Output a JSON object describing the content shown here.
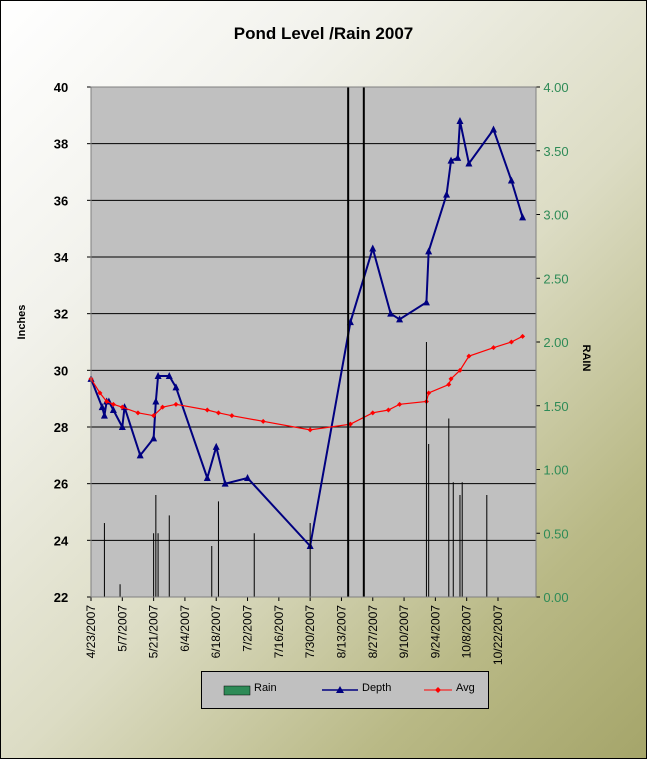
{
  "chart_data": {
    "type": "bar+line",
    "title": "Pond Level /Rain 2007",
    "xlabel": "",
    "ylabel": "Inches",
    "y2label": "RAIN",
    "ylim": [
      22,
      40
    ],
    "y2lim": [
      0,
      4
    ],
    "yticks": [
      "22",
      "24",
      "26",
      "28",
      "30",
      "32",
      "34",
      "36",
      "38",
      "40"
    ],
    "y2ticks": [
      "0.00",
      "0.50",
      "1.00",
      "1.50",
      "2.00",
      "2.50",
      "3.00",
      "3.50",
      "4.00"
    ],
    "xtick_labels": [
      "4/23/2007",
      "5/7/2007",
      "5/21/2007",
      "6/4/2007",
      "6/18/2007",
      "7/2/2007",
      "7/16/2007",
      "7/30/2007",
      "8/13/2007",
      "8/27/2007",
      "9/10/2007",
      "9/24/2007",
      "10/8/2007",
      "10/22/2007"
    ],
    "x_start": "2007-04-23",
    "x_end": "2007-11-08",
    "legend": [
      {
        "name": "Rain",
        "color": "#2e8b57",
        "kind": "bar"
      },
      {
        "name": "Depth",
        "color": "#000080",
        "kind": "line-triangle"
      },
      {
        "name": "Avg",
        "color": "#ff0000",
        "kind": "line-diamond"
      }
    ],
    "grid": true,
    "series": [
      {
        "name": "Depth",
        "axis": "left",
        "color": "#000080",
        "x": [
          "2007-04-23",
          "2007-04-28",
          "2007-04-29",
          "2007-04-30",
          "2007-05-01",
          "2007-05-03",
          "2007-05-07",
          "2007-05-08",
          "2007-05-15",
          "2007-05-21",
          "2007-05-22",
          "2007-05-23",
          "2007-05-28",
          "2007-05-31",
          "2007-06-14",
          "2007-06-18",
          "2007-06-22",
          "2007-07-02",
          "2007-07-30",
          "2007-08-17",
          "2007-08-27",
          "2007-09-04",
          "2007-09-08",
          "2007-09-20",
          "2007-09-21",
          "2007-09-29",
          "2007-10-01",
          "2007-10-04",
          "2007-10-05",
          "2007-10-09",
          "2007-10-20",
          "2007-10-28",
          "2007-11-02"
        ],
        "values": [
          29.7,
          28.7,
          28.4,
          28.9,
          28.9,
          28.6,
          28.0,
          28.7,
          27.0,
          27.6,
          28.9,
          29.8,
          29.8,
          29.4,
          26.2,
          27.3,
          26.0,
          26.2,
          23.8,
          31.7,
          34.3,
          32.0,
          31.8,
          32.4,
          34.2,
          36.2,
          37.4,
          37.5,
          38.8,
          37.3,
          38.5,
          36.7,
          35.4
        ]
      },
      {
        "name": "Avg",
        "axis": "left",
        "color": "#ff0000",
        "x": [
          "2007-04-23",
          "2007-04-27",
          "2007-04-30",
          "2007-05-03",
          "2007-05-07",
          "2007-05-14",
          "2007-05-21",
          "2007-05-25",
          "2007-05-31",
          "2007-06-14",
          "2007-06-19",
          "2007-06-25",
          "2007-07-09",
          "2007-07-30",
          "2007-08-17",
          "2007-08-27",
          "2007-09-03",
          "2007-09-08",
          "2007-09-20",
          "2007-09-21",
          "2007-09-30",
          "2007-10-01",
          "2007-10-05",
          "2007-10-09",
          "2007-10-20",
          "2007-10-28",
          "2007-11-02"
        ],
        "values": [
          29.7,
          29.2,
          28.9,
          28.8,
          28.7,
          28.5,
          28.4,
          28.7,
          28.8,
          28.6,
          28.5,
          28.4,
          28.2,
          27.9,
          28.1,
          28.5,
          28.6,
          28.8,
          28.9,
          29.2,
          29.5,
          29.7,
          30.0,
          30.5,
          30.8,
          31.0,
          31.2
        ]
      },
      {
        "name": "Rain",
        "axis": "right",
        "color": "#000000",
        "x": [
          "2007-04-29",
          "2007-05-06",
          "2007-05-21",
          "2007-05-22",
          "2007-05-23",
          "2007-05-28",
          "2007-06-16",
          "2007-06-19",
          "2007-07-05",
          "2007-07-30",
          "2007-08-16",
          "2007-08-23",
          "2007-09-20",
          "2007-09-21",
          "2007-09-30",
          "2007-10-02",
          "2007-10-05",
          "2007-10-06",
          "2007-10-17"
        ],
        "values": [
          0.58,
          0.1,
          0.5,
          0.8,
          0.5,
          0.64,
          0.4,
          0.75,
          0.5,
          0.58,
          4.0,
          4.0,
          2.0,
          1.2,
          1.4,
          0.9,
          0.8,
          0.9,
          0.8
        ]
      }
    ]
  }
}
